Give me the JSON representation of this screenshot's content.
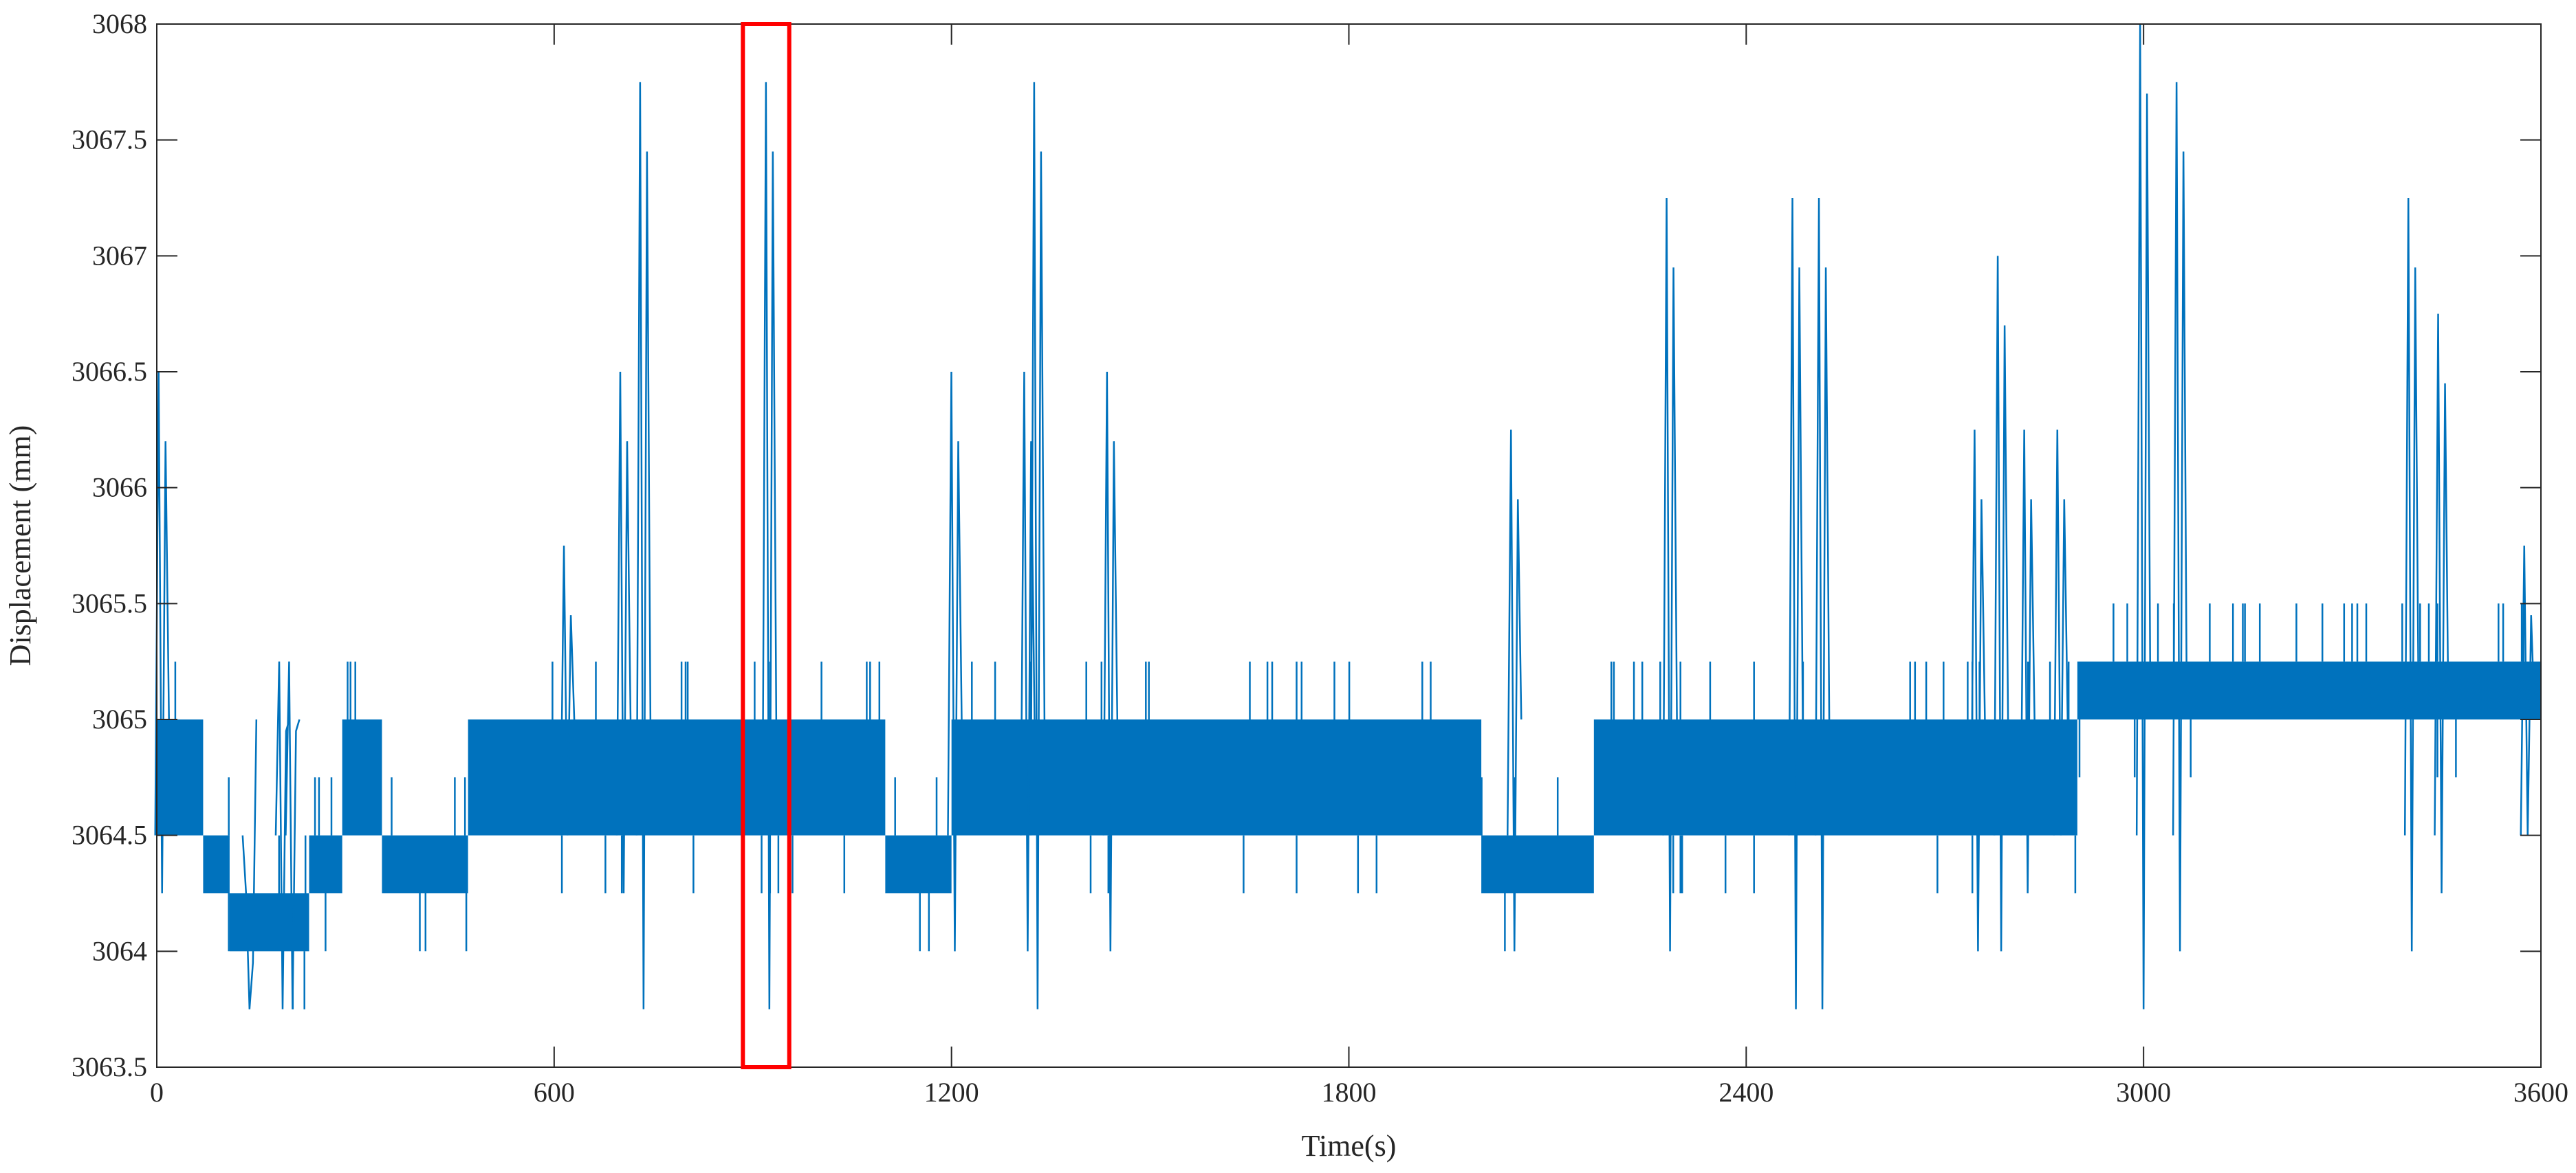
{
  "chart_data": {
    "type": "line",
    "title": "",
    "xlabel": "Time(s)",
    "ylabel": "Displacement (mm)",
    "xlim": [
      0,
      3600
    ],
    "ylim": [
      3063.5,
      3068
    ],
    "xticks": [
      0,
      600,
      1200,
      1800,
      2400,
      3000,
      3600
    ],
    "xtick_labels": [
      "0",
      "600",
      "1200",
      "1800",
      "2400",
      "3000",
      "3600"
    ],
    "yticks": [
      3063.5,
      3064,
      3064.5,
      3065,
      3065.5,
      3066,
      3066.5,
      3067,
      3067.5,
      3068
    ],
    "ytick_labels": [
      "3063.5",
      "3064",
      "3064.5",
      "3065",
      "3065.5",
      "3066",
      "3066.5",
      "3067",
      "3067.5",
      "3068"
    ],
    "grid": false,
    "legend": "none",
    "series": [
      {
        "color": "#0072BD",
        "note_bands": "signal mostly oscillates between the listed band levels",
        "bands": [
          {
            "x": [
              0,
              70
            ],
            "lo": 3064.5,
            "hi": 3065
          },
          {
            "x": [
              70,
              110
            ],
            "lo": 3064.25,
            "hi": 3064.5
          },
          {
            "x": [
              110,
              230
            ],
            "lo": 3064,
            "hi": 3064.25
          },
          {
            "x": [
              230,
              280
            ],
            "lo": 3064.25,
            "hi": 3064.5
          },
          {
            "x": [
              280,
              340
            ],
            "lo": 3064.5,
            "hi": 3065
          },
          {
            "x": [
              340,
              470
            ],
            "lo": 3064.25,
            "hi": 3064.5
          },
          {
            "x": [
              470,
              1100
            ],
            "lo": 3064.5,
            "hi": 3065
          },
          {
            "x": [
              1100,
              1200
            ],
            "lo": 3064.25,
            "hi": 3064.5
          },
          {
            "x": [
              1200,
              2000
            ],
            "lo": 3064.5,
            "hi": 3065
          },
          {
            "x": [
              2000,
              2170
            ],
            "lo": 3064.25,
            "hi": 3064.5
          },
          {
            "x": [
              2170,
              2900
            ],
            "lo": 3064.5,
            "hi": 3065
          },
          {
            "x": [
              2900,
              3600
            ],
            "lo": 3065,
            "hi": 3065.25
          }
        ],
        "spikes": [
          {
            "x": 8,
            "max": 3066.5,
            "min": 3064.25
          },
          {
            "x": 140,
            "max": 3064.25,
            "min": 3063.75
          },
          {
            "x": 190,
            "max": 3065.25,
            "min": 3063.75
          },
          {
            "x": 205,
            "max": 3065.25,
            "min": 3063.75
          },
          {
            "x": 620,
            "max": 3065.75,
            "min": 3064.5
          },
          {
            "x": 705,
            "max": 3066.5,
            "min": 3064.25
          },
          {
            "x": 735,
            "max": 3067.75,
            "min": 3063.75
          },
          {
            "x": 925,
            "max": 3067.75,
            "min": 3063.75
          },
          {
            "x": 1205,
            "max": 3066.5,
            "min": 3064
          },
          {
            "x": 1315,
            "max": 3066.5,
            "min": 3064
          },
          {
            "x": 1330,
            "max": 3067.75,
            "min": 3063.75
          },
          {
            "x": 1440,
            "max": 3066.5,
            "min": 3064
          },
          {
            "x": 2050,
            "max": 3066.25,
            "min": 3064
          },
          {
            "x": 2285,
            "max": 3067.25,
            "min": 3064
          },
          {
            "x": 2475,
            "max": 3067.25,
            "min": 3063.75
          },
          {
            "x": 2515,
            "max": 3067.25,
            "min": 3063.75
          },
          {
            "x": 2750,
            "max": 3066.25,
            "min": 3064
          },
          {
            "x": 2785,
            "max": 3067,
            "min": 3064
          },
          {
            "x": 2825,
            "max": 3066.25,
            "min": 3064.25
          },
          {
            "x": 2875,
            "max": 3066.25,
            "min": 3064.5
          },
          {
            "x": 3000,
            "max": 3068,
            "min": 3063.75
          },
          {
            "x": 3055,
            "max": 3067.75,
            "min": 3064
          },
          {
            "x": 3405,
            "max": 3067.25,
            "min": 3064
          },
          {
            "x": 3450,
            "max": 3066.75,
            "min": 3064.25
          },
          {
            "x": 3580,
            "max": 3065.75,
            "min": 3064.5
          }
        ]
      }
    ],
    "annotations": [
      {
        "type": "rectangle",
        "color": "#FF0000",
        "x_range": [
          885,
          955
        ],
        "y_range": [
          3063.5,
          3068
        ]
      }
    ]
  }
}
